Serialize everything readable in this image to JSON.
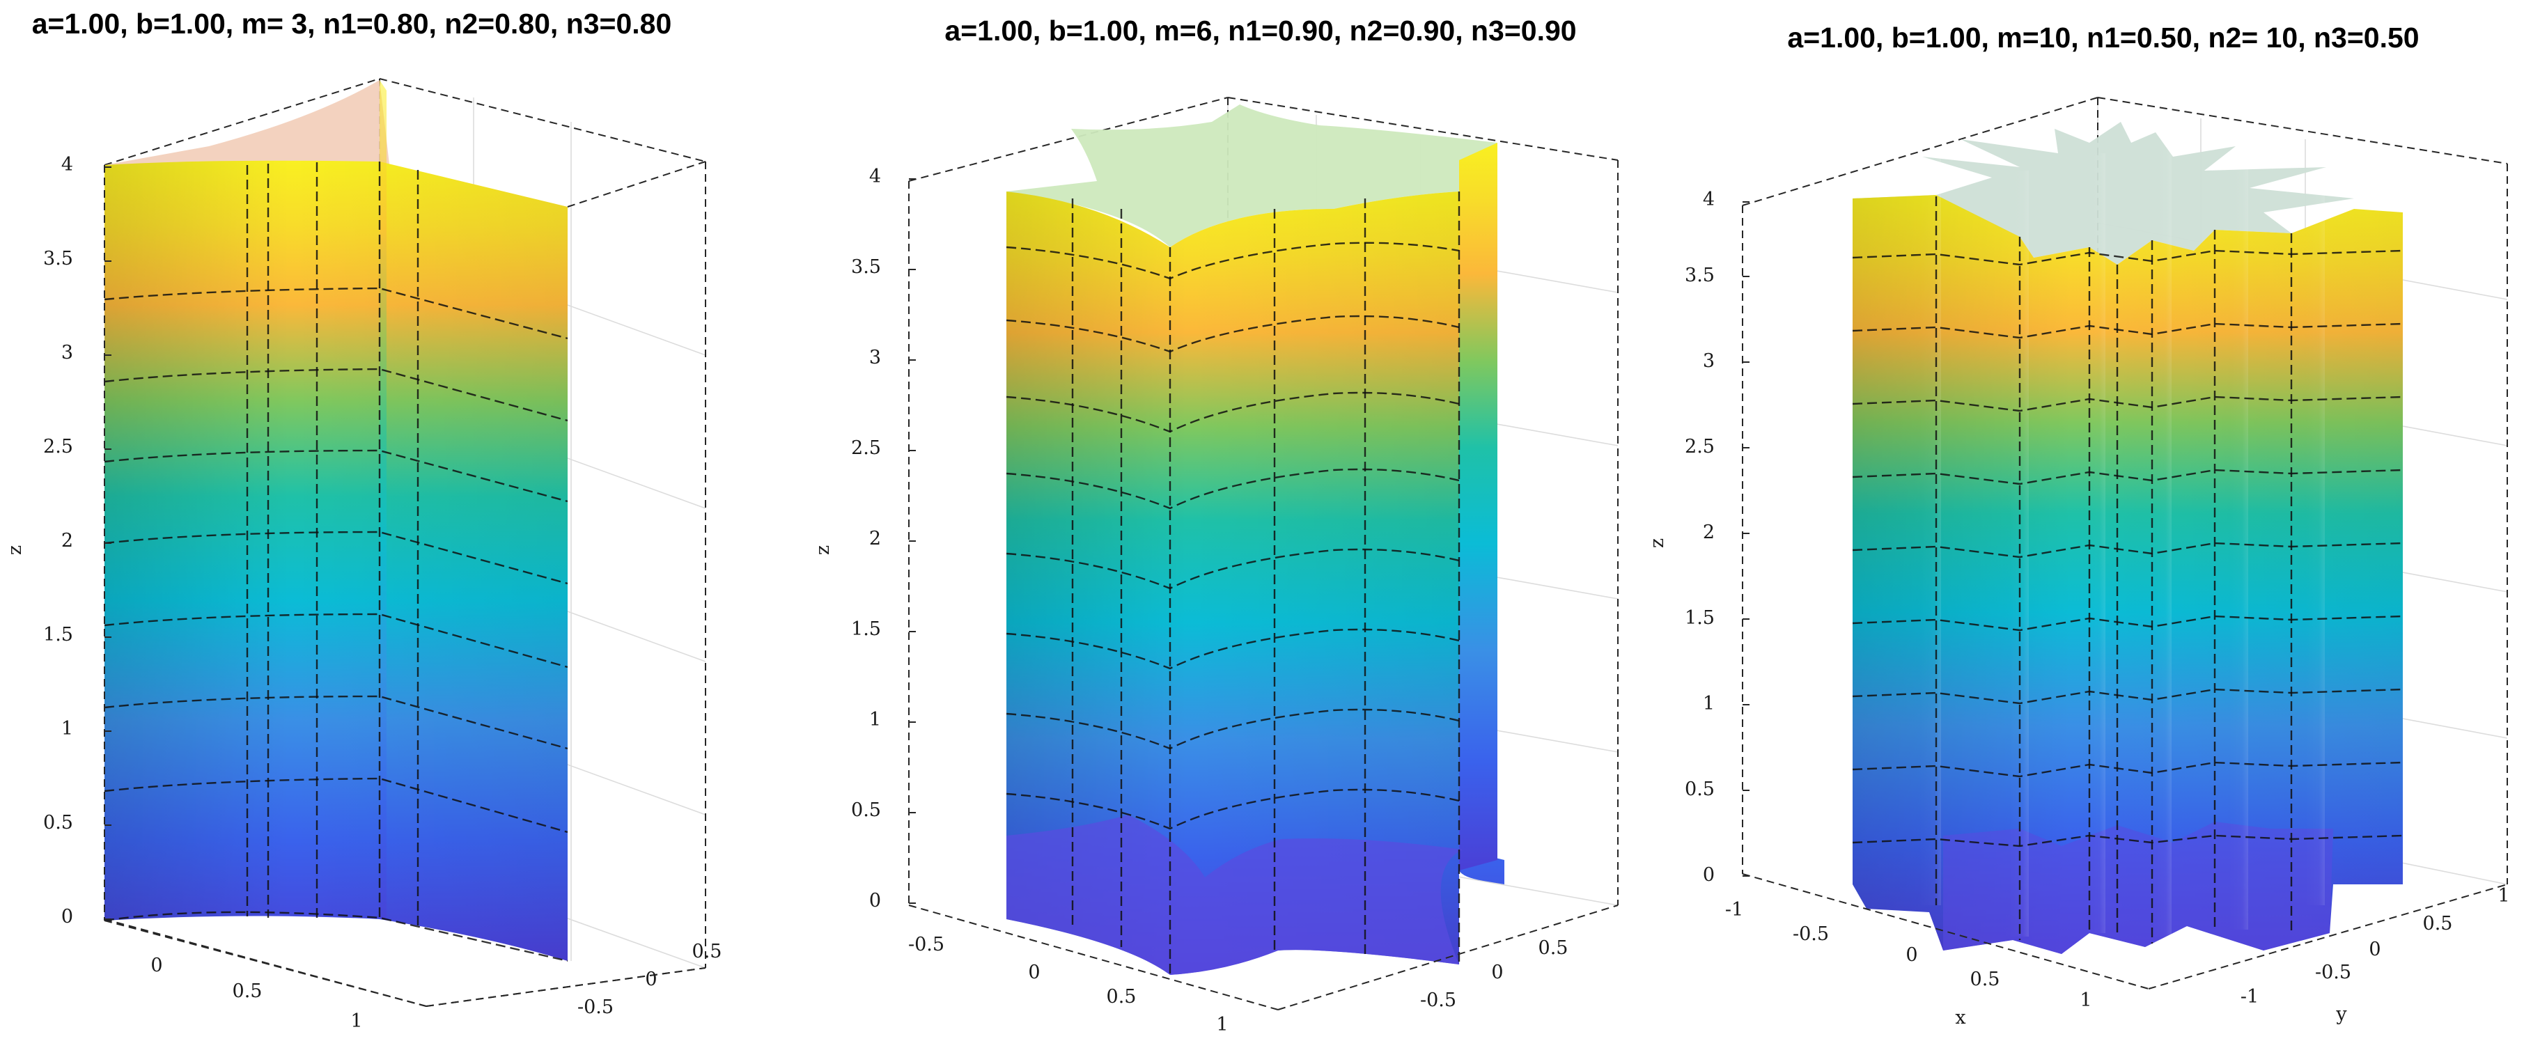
{
  "chart_data": [
    {
      "type": "surface",
      "title": "a=1.00, b=1.00, m= 3, n1=0.80, n2=0.80, n3=0.80",
      "params": {
        "a": 1.0,
        "b": 1.0,
        "m": 3,
        "n1": 0.8,
        "n2": 0.8,
        "n3": 0.8
      },
      "zlabel": "z",
      "zlim": [
        0,
        4
      ],
      "z_ticks": [
        "0",
        "0.5",
        "1",
        "1.5",
        "2",
        "2.5",
        "3",
        "3.5",
        "4"
      ],
      "x_ticks": [
        "0",
        "0.5",
        "1"
      ],
      "y_ticks": [
        "-0.5",
        "0",
        "0.5"
      ],
      "colormap": "parula",
      "cap_color": "#f2cdb8"
    },
    {
      "type": "surface",
      "title": "a=1.00, b=1.00, m=6, n1=0.90, n2=0.90, n3=0.90",
      "params": {
        "a": 1.0,
        "b": 1.0,
        "m": 6,
        "n1": 0.9,
        "n2": 0.9,
        "n3": 0.9
      },
      "zlabel": "z",
      "zlim": [
        0,
        4
      ],
      "z_ticks": [
        "0",
        "0.5",
        "1",
        "1.5",
        "2",
        "2.5",
        "3",
        "3.5",
        "4"
      ],
      "x_ticks": [
        "-0.5",
        "0",
        "0.5",
        "1"
      ],
      "y_ticks": [
        "-0.5",
        "0",
        "0.5"
      ],
      "colormap": "parula",
      "cap_color": "#cde9bd"
    },
    {
      "type": "surface",
      "title": "a=1.00, b=1.00, m=10, n1=0.50, n2= 10, n3=0.50",
      "params": {
        "a": 1.0,
        "b": 1.0,
        "m": 10,
        "n1": 0.5,
        "n2": 10,
        "n3": 0.5
      },
      "xlabel": "x",
      "ylabel": "y",
      "zlabel": "z",
      "zlim": [
        0,
        4
      ],
      "z_ticks": [
        "0",
        "0.5",
        "1",
        "1.5",
        "2",
        "2.5",
        "3",
        "3.5",
        "4"
      ],
      "x_ticks": [
        "-1",
        "-0.5",
        "0",
        "0.5",
        "1"
      ],
      "y_ticks": [
        "-1",
        "-0.5",
        "0",
        "0.5",
        "1"
      ],
      "colormap": "parula",
      "cap_color": "#cddfd6"
    }
  ],
  "colors": {
    "parula_top": "#f9f021",
    "parula_upper": "#fbb83a",
    "parula_mid": "#1fc1a8",
    "parula_teal": "#0bbcd6",
    "parula_low": "#3a8fe6",
    "parula_bottom": "#4a3fd6"
  }
}
